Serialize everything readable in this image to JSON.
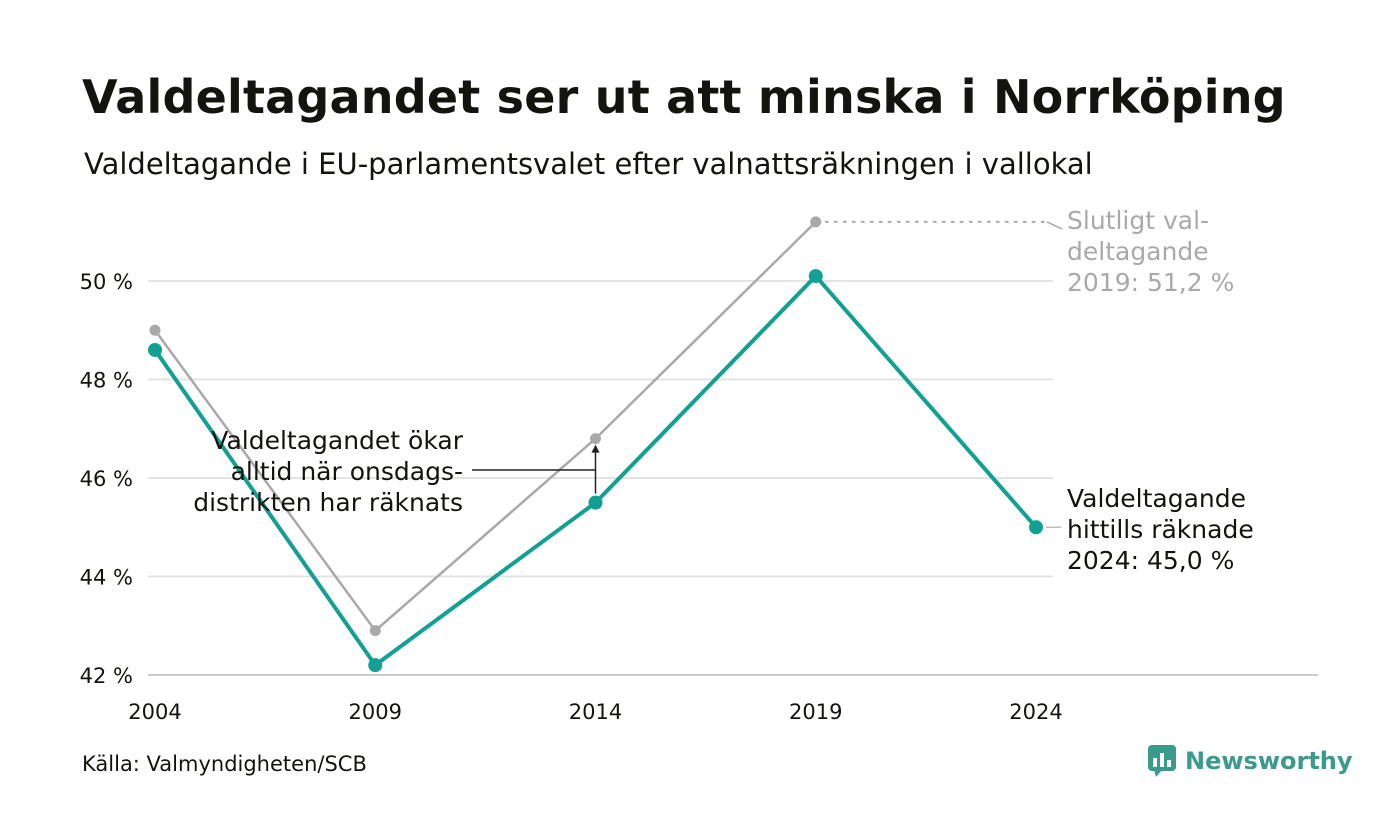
{
  "header": {
    "title": "Valdeltagandet ser ut att minska i Norrköping",
    "subtitle": "Valdeltagande i EU-parlamentsvalet efter valnattsräkningen i vallokal"
  },
  "footer": {
    "source": "Källa: Valmyndigheten/SCB",
    "brand": "Newsworthy"
  },
  "chart_data": {
    "type": "line",
    "x": [
      2004,
      2009,
      2014,
      2019,
      2024
    ],
    "xticks": [
      "2004",
      "2009",
      "2014",
      "2019",
      "2024"
    ],
    "yticks": [
      {
        "value": 42,
        "label": "42 %"
      },
      {
        "value": 44,
        "label": "44 %"
      },
      {
        "value": 46,
        "label": "46 %"
      },
      {
        "value": 48,
        "label": "48 %"
      },
      {
        "value": 50,
        "label": "50 %"
      }
    ],
    "ylim": [
      42,
      51.2
    ],
    "grid": true,
    "series": [
      {
        "values": [
          49.0,
          42.9,
          46.8,
          51.2,
          null
        ],
        "color": "#a9a9a9"
      },
      {
        "values": [
          48.6,
          42.2,
          45.5,
          50.1,
          45.0
        ],
        "color": "#12a092"
      }
    ],
    "annotations": {
      "final_2019": [
        "Slutligt val-",
        "deltagande",
        "2019: 51,2 %"
      ],
      "counted_2024": [
        "Valdeltagande",
        "hittills räknade",
        "2024: 45,0 %"
      ],
      "wednesday": [
        "Valdeltagandet ökar",
        "alltid när onsdags-",
        "distrikten har räknats"
      ]
    }
  },
  "colors": {
    "accent": "#12a092",
    "final": "#a9a9a9",
    "grid": "#e3e3e3",
    "axis": "#cccccc",
    "text": "#14140f"
  }
}
